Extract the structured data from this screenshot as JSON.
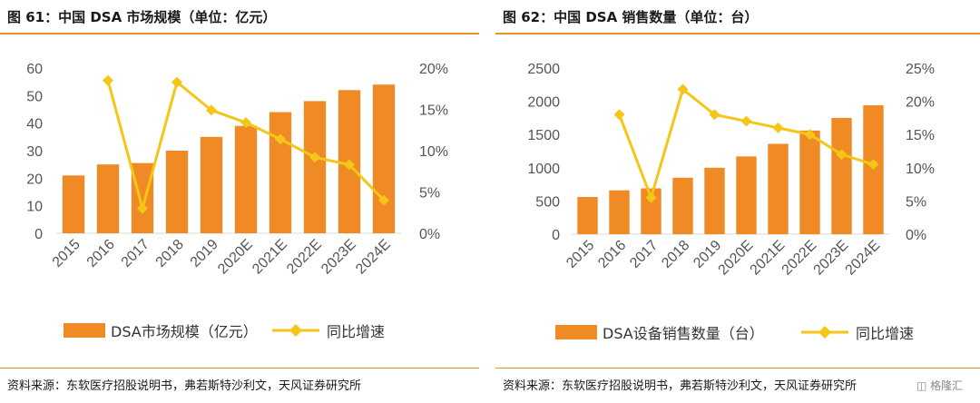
{
  "charts": [
    {
      "title": "图 61：中国 DSA 市场规模（单位：亿元）",
      "source": "资料来源：东软医疗招股说明书，弗若斯特沙利文，天风证券研究所"
    },
    {
      "title": "图 62：中国 DSA 销售数量（单位：台）",
      "source": "资料来源：东软医疗招股说明书，弗若斯特沙利文，天风证券研究所"
    }
  ],
  "watermark": "格隆汇",
  "colors": {
    "bar": "#f08a24",
    "line": "#f5c518",
    "accent_rule": "#e8922c"
  },
  "chart_data": [
    {
      "type": "bar+line",
      "categories": [
        "2015",
        "2016",
        "2017",
        "2018",
        "2019",
        "2020E",
        "2021E",
        "2022E",
        "2023E",
        "2024E"
      ],
      "series": [
        {
          "name": "DSA市场规模（亿元）",
          "type": "bar",
          "axis": "left",
          "values": [
            21,
            25,
            25.5,
            30,
            35,
            39,
            44,
            48,
            52,
            54
          ]
        },
        {
          "name": "同比增速",
          "type": "line",
          "axis": "right",
          "values": [
            null,
            0.185,
            0.03,
            0.183,
            0.149,
            0.134,
            0.114,
            0.092,
            0.083,
            0.04
          ]
        }
      ],
      "y_left": {
        "min": 0,
        "max": 60,
        "ticks": [
          0,
          10,
          20,
          30,
          40,
          50,
          60
        ]
      },
      "y_right": {
        "min": 0,
        "max": 0.2,
        "ticks": [
          "0%",
          "5%",
          "10%",
          "15%",
          "20%"
        ]
      },
      "legend_position": "bottom"
    },
    {
      "type": "bar+line",
      "categories": [
        "2015",
        "2016",
        "2017",
        "2018",
        "2019",
        "2020E",
        "2021E",
        "2022E",
        "2023E",
        "2024E"
      ],
      "series": [
        {
          "name": "DSA设备销售数量（台）",
          "type": "bar",
          "axis": "left",
          "values": [
            560,
            660,
            690,
            850,
            1000,
            1170,
            1360,
            1560,
            1750,
            1940
          ]
        },
        {
          "name": "同比增速",
          "type": "line",
          "axis": "right",
          "values": [
            null,
            0.18,
            0.055,
            0.218,
            0.18,
            0.17,
            0.16,
            0.15,
            0.12,
            0.105
          ]
        }
      ],
      "y_left": {
        "min": 0,
        "max": 2500,
        "ticks": [
          0,
          500,
          1000,
          1500,
          2000,
          2500
        ]
      },
      "y_right": {
        "min": 0,
        "max": 0.25,
        "ticks": [
          "0%",
          "5%",
          "10%",
          "15%",
          "20%",
          "25%"
        ]
      },
      "legend_position": "bottom"
    }
  ]
}
